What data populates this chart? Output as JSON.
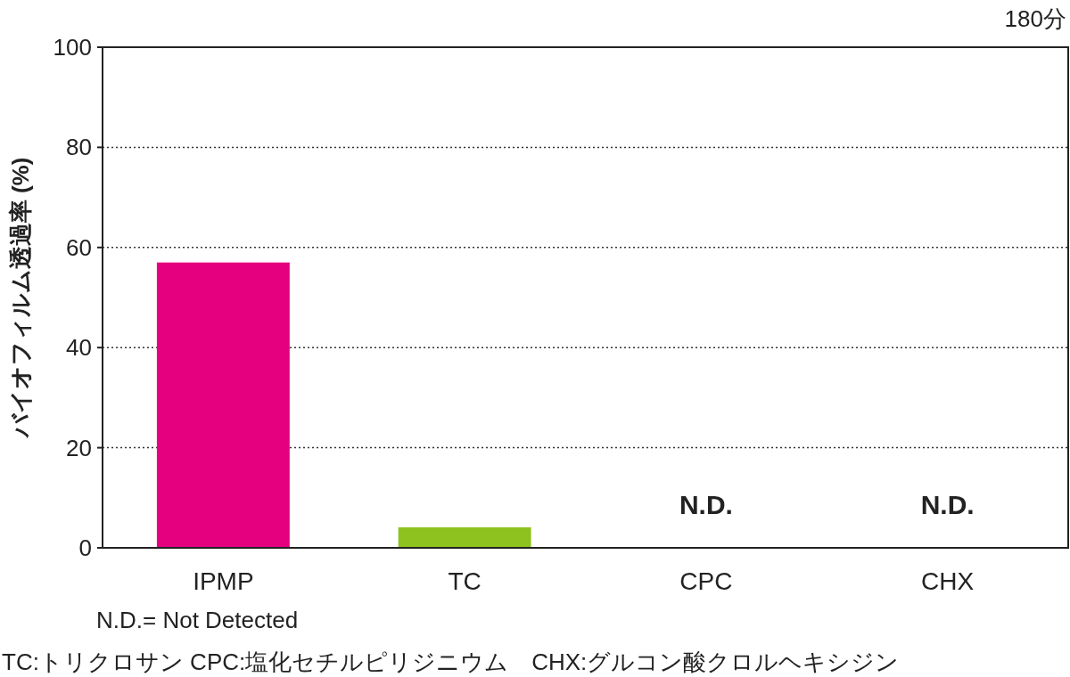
{
  "chart_data": {
    "type": "bar",
    "ylabel": "バイオフィルム透過率 (%)",
    "categories": [
      "IPMP",
      "TC",
      "CPC",
      "CHX"
    ],
    "values": [
      57,
      4.1,
      null,
      null
    ],
    "colors": [
      "#e4007f",
      "#8dc21f",
      null,
      null
    ],
    "value_labels": [
      null,
      null,
      "N.D.",
      "N.D."
    ],
    "ylim": [
      0,
      100
    ],
    "yticks": [
      0,
      20,
      40,
      60,
      80,
      100
    ],
    "grid": "y",
    "line_style": "dotted",
    "annotations": [
      "180分",
      "N.D.= Not Detected",
      "TC:トリクロサン CPC:塩化セチルピリジニウム　CHX:グルコン酸クロルヘキシジン"
    ]
  }
}
